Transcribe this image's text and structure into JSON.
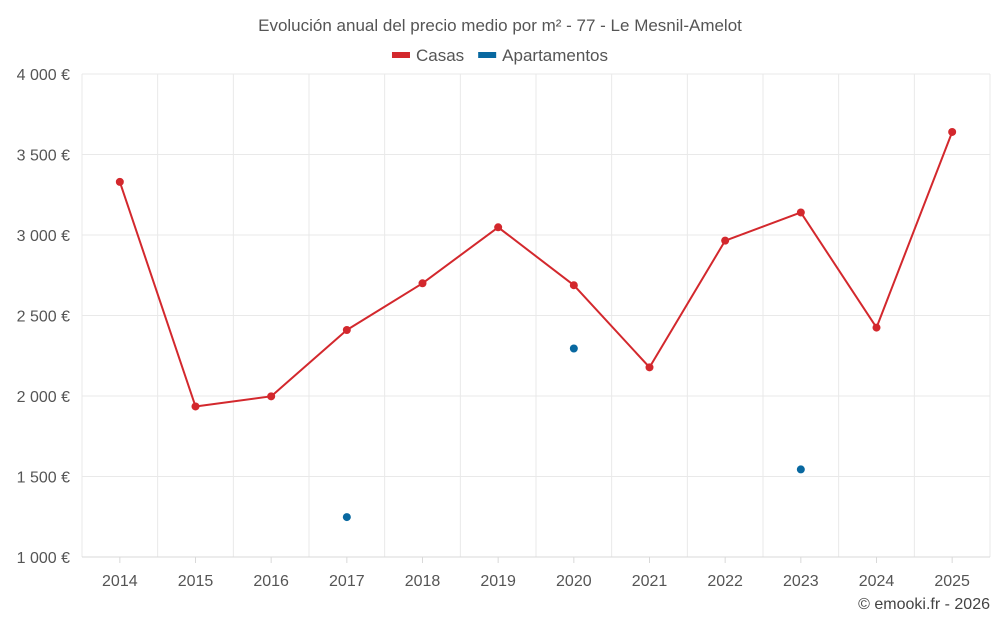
{
  "chart_data": {
    "type": "line",
    "title": "Evolución anual del precio medio por m² - 77 - Le Mesnil-Amelot",
    "categories": [
      "2014",
      "2015",
      "2016",
      "2017",
      "2018",
      "2019",
      "2020",
      "2021",
      "2022",
      "2023",
      "2024",
      "2025"
    ],
    "series": [
      {
        "name": "Casas",
        "color": "#d3282d",
        "values": [
          3330,
          1935,
          1998,
          2410,
          2700,
          3048,
          2688,
          2178,
          2965,
          3140,
          2425,
          3640
        ]
      },
      {
        "name": "Apartamentos",
        "color": "#0868a0",
        "values": [
          null,
          null,
          null,
          1248,
          null,
          null,
          2295,
          null,
          null,
          1544,
          null,
          null
        ]
      }
    ],
    "ylim": [
      1000,
      4000
    ],
    "y_ticks": [
      1000,
      1500,
      2000,
      2500,
      3000,
      3500,
      4000
    ],
    "y_tick_labels": [
      "1 000 €",
      "1 500 €",
      "2 000 €",
      "2 500 €",
      "3 000 €",
      "3 500 €",
      "4 000 €"
    ],
    "xlabel": "",
    "ylabel": "",
    "grid": true,
    "legend_position": "top-center"
  },
  "credit": "© emooki.fr - 2026"
}
